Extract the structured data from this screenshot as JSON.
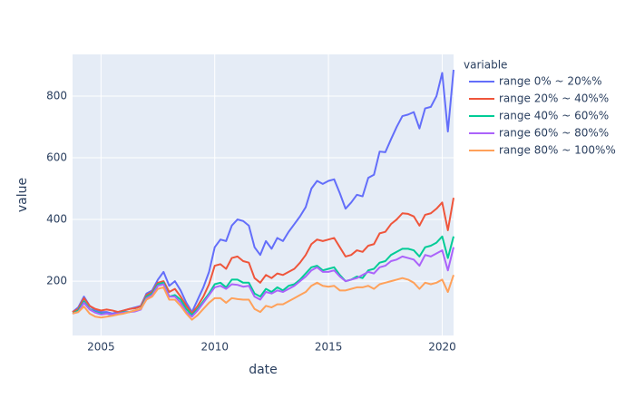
{
  "chart_data": {
    "type": "line",
    "x_label": "date",
    "y_label": "value",
    "legend_title": "variable",
    "legend_position": "right",
    "grid": true,
    "xlim": [
      2003.75,
      2020.5
    ],
    "xticks": [
      2005,
      2010,
      2015,
      2020
    ],
    "ylim": [
      24,
      935
    ],
    "yticks": [
      200,
      400,
      600,
      800
    ],
    "x": [
      2003.75,
      2004,
      2004.25,
      2004.5,
      2004.75,
      2005,
      2005.25,
      2005.5,
      2005.75,
      2006,
      2006.25,
      2006.5,
      2006.75,
      2007,
      2007.25,
      2007.5,
      2007.75,
      2008,
      2008.25,
      2008.5,
      2008.75,
      2009,
      2009.25,
      2009.5,
      2009.75,
      2010,
      2010.25,
      2010.5,
      2010.75,
      2011,
      2011.25,
      2011.5,
      2011.75,
      2012,
      2012.25,
      2012.5,
      2012.75,
      2013,
      2013.25,
      2013.5,
      2013.75,
      2014,
      2014.25,
      2014.5,
      2014.75,
      2015,
      2015.25,
      2015.5,
      2015.75,
      2016,
      2016.25,
      2016.5,
      2016.75,
      2017,
      2017.25,
      2017.5,
      2017.75,
      2018,
      2018.25,
      2018.5,
      2018.75,
      2019,
      2019.25,
      2019.5,
      2019.75,
      2020,
      2020.25,
      2020.5
    ],
    "series": [
      {
        "name": "range 0% ~ 20%%",
        "color": "#636efa",
        "values": [
          100,
          115,
          150,
          120,
          105,
          100,
          100,
          95,
          100,
          105,
          110,
          115,
          120,
          160,
          170,
          205,
          230,
          185,
          200,
          170,
          130,
          100,
          140,
          180,
          230,
          310,
          335,
          330,
          380,
          400,
          395,
          380,
          310,
          285,
          330,
          305,
          340,
          330,
          360,
          385,
          410,
          440,
          500,
          525,
          515,
          525,
          530,
          485,
          435,
          455,
          480,
          475,
          535,
          545,
          620,
          618,
          660,
          700,
          735,
          740,
          748,
          695,
          760,
          765,
          800,
          875,
          685,
          885
        ]
      },
      {
        "name": "range 20% ~ 40%%",
        "color": "#ef553b",
        "values": [
          100,
          110,
          145,
          120,
          110,
          105,
          108,
          105,
          100,
          105,
          110,
          112,
          118,
          155,
          165,
          195,
          200,
          165,
          175,
          150,
          120,
          95,
          120,
          150,
          190,
          250,
          255,
          240,
          275,
          280,
          265,
          260,
          210,
          195,
          220,
          210,
          225,
          220,
          230,
          240,
          260,
          285,
          320,
          335,
          330,
          335,
          340,
          310,
          280,
          285,
          300,
          295,
          315,
          320,
          355,
          360,
          385,
          400,
          420,
          418,
          410,
          380,
          415,
          420,
          435,
          455,
          365,
          470
        ]
      },
      {
        "name": "range 40% ~ 60%%",
        "color": "#00cc96",
        "values": [
          95,
          105,
          135,
          110,
          100,
          95,
          95,
          90,
          95,
          100,
          100,
          105,
          110,
          150,
          160,
          190,
          195,
          150,
          155,
          140,
          110,
          90,
          110,
          135,
          160,
          190,
          195,
          180,
          205,
          205,
          195,
          195,
          160,
          150,
          175,
          165,
          180,
          170,
          185,
          190,
          205,
          225,
          245,
          250,
          235,
          240,
          245,
          220,
          200,
          205,
          215,
          210,
          235,
          240,
          260,
          265,
          285,
          295,
          305,
          305,
          300,
          280,
          310,
          315,
          325,
          345,
          275,
          345
        ]
      },
      {
        "name": "range 60% ~ 80%%",
        "color": "#ab63fa",
        "values": [
          95,
          100,
          130,
          108,
          98,
          92,
          95,
          92,
          95,
          98,
          100,
          102,
          108,
          145,
          155,
          185,
          190,
          150,
          150,
          130,
          100,
          85,
          105,
          130,
          155,
          180,
          185,
          175,
          190,
          188,
          182,
          185,
          150,
          140,
          165,
          160,
          170,
          165,
          175,
          185,
          200,
          215,
          235,
          245,
          230,
          230,
          235,
          215,
          200,
          205,
          210,
          220,
          230,
          225,
          245,
          250,
          265,
          270,
          280,
          275,
          270,
          250,
          285,
          280,
          290,
          300,
          235,
          310
        ]
      },
      {
        "name": "range 80% ~ 100%%",
        "color": "#ffa15a",
        "values": [
          95,
          100,
          118,
          95,
          85,
          82,
          85,
          88,
          92,
          95,
          100,
          105,
          110,
          140,
          150,
          175,
          180,
          140,
          140,
          120,
          95,
          75,
          90,
          110,
          130,
          145,
          145,
          130,
          145,
          142,
          140,
          140,
          110,
          100,
          120,
          115,
          125,
          125,
          135,
          145,
          155,
          165,
          185,
          195,
          185,
          182,
          185,
          170,
          170,
          175,
          180,
          180,
          185,
          175,
          190,
          195,
          200,
          205,
          210,
          205,
          195,
          175,
          195,
          190,
          195,
          205,
          165,
          220
        ]
      }
    ]
  }
}
